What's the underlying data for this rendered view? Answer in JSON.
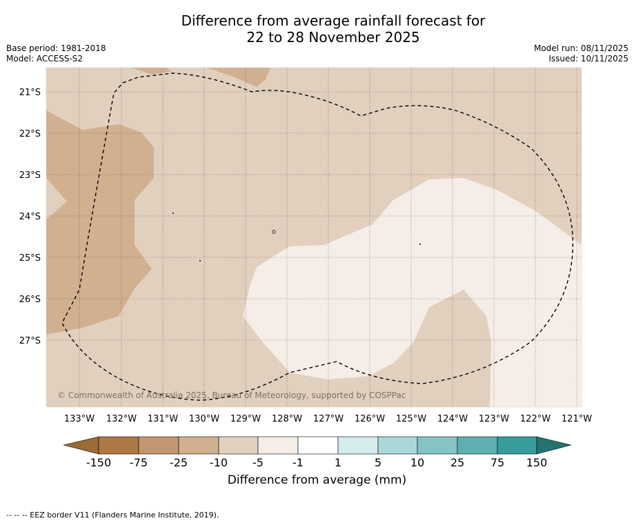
{
  "title": {
    "line1": "Difference from average rainfall forecast for",
    "line2": "22 to 28 November 2025"
  },
  "meta_left": {
    "base_period": "Base period: 1981-2018",
    "model": "Model: ACCESS-S2"
  },
  "meta_right": {
    "model_run": "Model run: 08/11/2025",
    "issued": "Issued: 10/11/2025"
  },
  "map": {
    "lat_labels": [
      "21°S",
      "22°S",
      "23°S",
      "24°S",
      "25°S",
      "26°S",
      "27°S"
    ],
    "lon_labels": [
      "133°W",
      "132°W",
      "131°W",
      "130°W",
      "129°W",
      "128°W",
      "127°W",
      "126°W",
      "125°W",
      "124°W",
      "123°W",
      "122°W",
      "121°W"
    ],
    "copyright": "© Commonwealth of Australia 2025, Bureau of Meteorology, supported by COSPPac"
  },
  "colorbar": {
    "label": "Difference from average (mm)",
    "tick_labels": [
      "-150",
      "-75",
      "-25",
      "-10",
      "-5",
      "-1",
      "1",
      "5",
      "10",
      "25",
      "75",
      "150"
    ],
    "colors": [
      "#9b6a35",
      "#ad7843",
      "#c29670",
      "#d1b090",
      "#e2d0bf",
      "#f5eee8",
      "#ffffff",
      "#d5ecec",
      "#a9d8d8",
      "#84c4c4",
      "#5eb0b0",
      "#389c9c",
      "#267272"
    ]
  },
  "footer": "--  --  -- EEZ border V11 (Flanders Marine Institute, 2019)."
}
